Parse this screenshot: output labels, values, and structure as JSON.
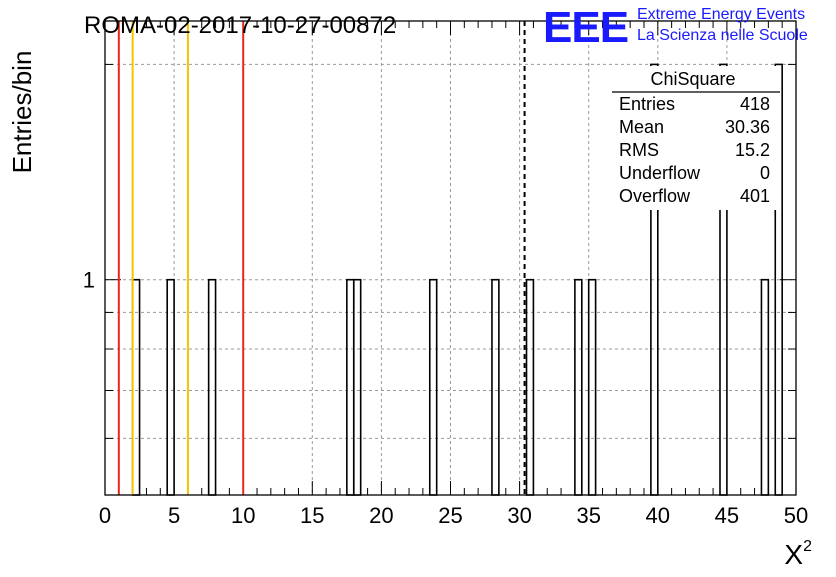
{
  "chart_data": {
    "type": "bar",
    "title": "ROMA-02-2017-10-27-00872",
    "xlabel": "X",
    "xlabel_superscript": "2",
    "ylabel": "Entries/bin",
    "xlim": [
      0,
      50
    ],
    "y_scale": "log",
    "ylim": [
      0.5,
      2.3
    ],
    "grid": true,
    "x_ticks": [
      "0",
      "5",
      "10",
      "15",
      "20",
      "25",
      "30",
      "35",
      "40",
      "45",
      "50"
    ],
    "y_ticks": [
      "1"
    ],
    "bin_width": 0.5,
    "bins": [
      {
        "x": 2.0,
        "value": 1
      },
      {
        "x": 4.5,
        "value": 1
      },
      {
        "x": 7.5,
        "value": 1
      },
      {
        "x": 17.5,
        "value": 1
      },
      {
        "x": 18.0,
        "value": 1
      },
      {
        "x": 23.5,
        "value": 1
      },
      {
        "x": 28.0,
        "value": 1
      },
      {
        "x": 30.5,
        "value": 1
      },
      {
        "x": 34.0,
        "value": 1
      },
      {
        "x": 35.0,
        "value": 1
      },
      {
        "x": 39.5,
        "value": 2
      },
      {
        "x": 44.5,
        "value": 2
      },
      {
        "x": 47.5,
        "value": 1
      },
      {
        "x": 48.5,
        "value": 2
      }
    ],
    "reference_lines": [
      {
        "x": 1.0,
        "color": "#e8281e",
        "style": "solid"
      },
      {
        "x": 2.0,
        "color": "#f5c400",
        "style": "solid"
      },
      {
        "x": 6.0,
        "color": "#f5c400",
        "style": "solid"
      },
      {
        "x": 10.0,
        "color": "#e8281e",
        "style": "solid"
      },
      {
        "x": 30.36,
        "color": "#000000",
        "style": "dashed"
      }
    ],
    "stats_box": {
      "title": "ChiSquare",
      "rows": [
        {
          "label": "Entries",
          "value": "418"
        },
        {
          "label": "Mean",
          "value": "30.36"
        },
        {
          "label": "RMS",
          "value": "15.2"
        },
        {
          "label": "Underflow",
          "value": "0"
        },
        {
          "label": "Overflow",
          "value": "401"
        }
      ]
    },
    "logo": {
      "text": "EEE",
      "line1": "Extreme Energy Events",
      "line2": "La Scienza nelle Scuole",
      "color": "#1a1aff"
    }
  }
}
